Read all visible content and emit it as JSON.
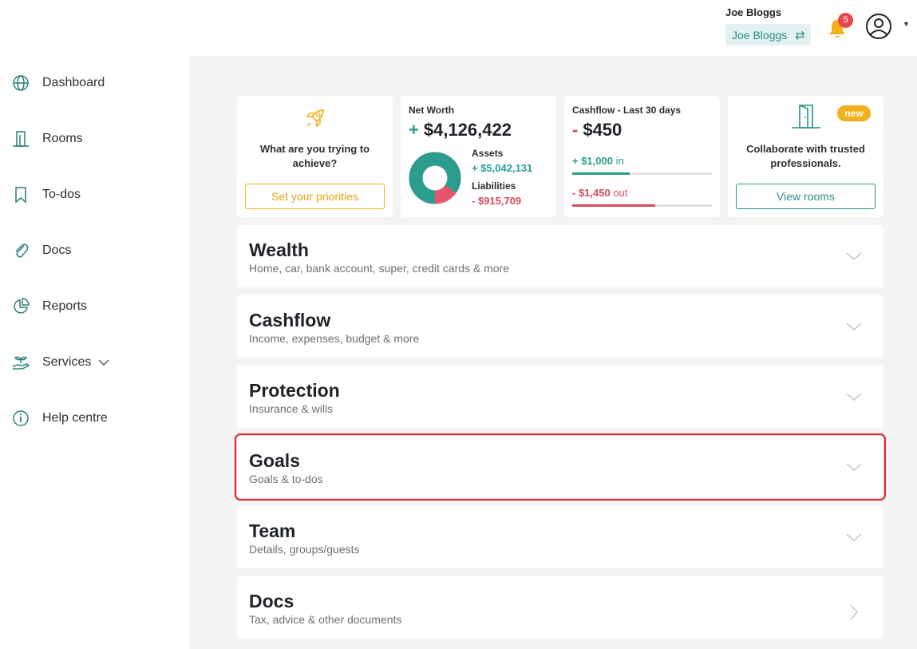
{
  "header": {
    "user_name": "Joe Bloggs",
    "switch_label": "Joe Bloggs",
    "notifications_count": "5"
  },
  "sidebar": {
    "items": [
      {
        "label": "Dashboard",
        "icon": "globe-icon"
      },
      {
        "label": "Rooms",
        "icon": "building-icon"
      },
      {
        "label": "To-dos",
        "icon": "bookmark-icon"
      },
      {
        "label": "Docs",
        "icon": "paperclip-icon"
      },
      {
        "label": "Reports",
        "icon": "pie-chart-icon"
      },
      {
        "label": "Services",
        "icon": "plant-hand-icon"
      },
      {
        "label": "Help centre",
        "icon": "info-icon"
      }
    ]
  },
  "cards": {
    "goal": {
      "text": "What are you trying to achieve?",
      "button": "Set your priorities"
    },
    "net_worth": {
      "label": "Net Worth",
      "sign": "+",
      "value": "$4,126,422",
      "assets_label": "Assets",
      "assets_value": "+ $5,042,131",
      "liabilities_label": "Liabilities",
      "liabilities_value": "- $915,709",
      "assets_fraction": 0.846
    },
    "cashflow": {
      "label": "Cashflow - Last 30 days",
      "sign": "-",
      "value": "$450",
      "in_value": "+ $1,000",
      "in_word": "in",
      "out_value": "- $1,450",
      "out_word": "out",
      "in_fraction": 0.41,
      "out_fraction": 0.597
    },
    "rooms": {
      "badge": "new",
      "text": "Collaborate with trusted professionals.",
      "button": "View rooms"
    }
  },
  "sections": [
    {
      "title": "Wealth",
      "subtitle": "Home, car, bank account, super, credit cards & more"
    },
    {
      "title": "Cashflow",
      "subtitle": "Income, expenses, budget & more"
    },
    {
      "title": "Protection",
      "subtitle": "Insurance & wills"
    },
    {
      "title": "Goals",
      "subtitle": "Goals & to-dos"
    },
    {
      "title": "Team",
      "subtitle": "Details, groups/guests"
    },
    {
      "title": "Docs",
      "subtitle": "Tax, advice & other documents"
    }
  ],
  "colors": {
    "teal": "#2a9d8f",
    "red": "#d94a5a",
    "amber": "#f2b01e",
    "highlight": "#e5252a"
  }
}
